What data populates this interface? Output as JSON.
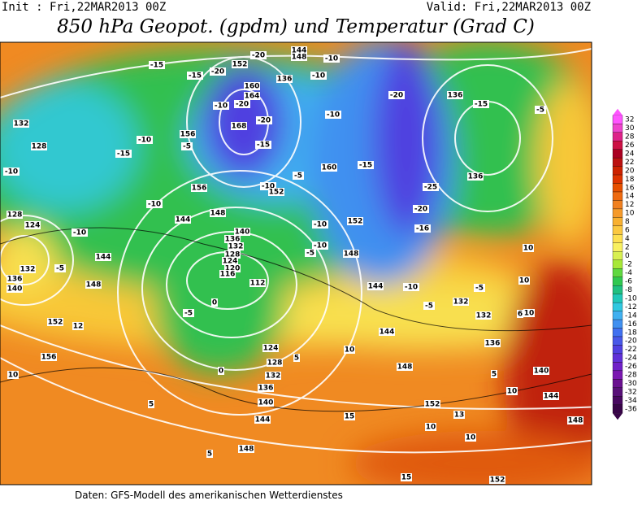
{
  "header": {
    "init": "Init : Fri,22MAR2013 00Z",
    "valid": "Valid: Fri,22MAR2013 00Z",
    "title": "850 hPa Geopot. (gpdm) und Temperatur (Grad C)"
  },
  "footer": "Daten: GFS-Modell des amerikanischen Wetterdienstes",
  "legend": {
    "ticks": [
      32,
      30,
      28,
      26,
      24,
      22,
      20,
      18,
      16,
      14,
      12,
      10,
      8,
      6,
      4,
      2,
      0,
      -2,
      -4,
      -6,
      -8,
      -10,
      -12,
      -14,
      -16,
      -18,
      -20,
      -22,
      -24,
      -26,
      -28,
      -30,
      -32,
      -34,
      -36
    ],
    "colors": [
      "#ff55ff",
      "#ee44cc",
      "#dd2288",
      "#cc1144",
      "#aa0022",
      "#bb1111",
      "#cc2200",
      "#dd3300",
      "#e65000",
      "#ee6a10",
      "#f08020",
      "#f59a2a",
      "#f8b030",
      "#fbc840",
      "#fde050",
      "#f8f060",
      "#d8f050",
      "#a8e838",
      "#60d840",
      "#30c850",
      "#20c080",
      "#20c8b8",
      "#30c8e0",
      "#40b0f0",
      "#4090f0",
      "#4070f0",
      "#4858e8",
      "#5040e0",
      "#6030d8",
      "#7020c8",
      "#7a18b0",
      "#6a1090",
      "#581078",
      "#480860",
      "#380448"
    ]
  },
  "contour_labels": [
    "144",
    "148",
    "-20",
    "152",
    "-10",
    "-15",
    "-15",
    "-20",
    "136",
    "-10",
    "160",
    "164",
    "-10",
    "-20",
    "-20",
    "136",
    "-15",
    "-5",
    "-10",
    "168",
    "-20",
    "156",
    "-10",
    "-15",
    "-5",
    "132",
    "128",
    "-15",
    "-10",
    "-5",
    "160",
    "-15",
    "136",
    "-10",
    "152",
    "156",
    "-10",
    "-25",
    "148",
    "144",
    "-20",
    "128",
    "124",
    "-10",
    "140",
    "136",
    "132",
    "128",
    "-10",
    "152",
    "-16",
    "-10",
    "-5",
    "148",
    "124",
    "120",
    "116",
    "144",
    "112",
    "-5",
    "132",
    "136",
    "140",
    "148",
    "0",
    "-5",
    "144",
    "-10",
    "-5",
    "132",
    "132",
    "152",
    "12",
    "-5",
    "10",
    "5",
    "124",
    "128",
    "132",
    "136",
    "140",
    "144",
    "148",
    "0",
    "10",
    "5",
    "5",
    "15",
    "10",
    "152",
    "10",
    "13",
    "15",
    "10",
    "140",
    "144",
    "148",
    "156",
    "10",
    "10",
    "6",
    "136",
    "144",
    "148",
    "5",
    "152",
    "10"
  ]
}
